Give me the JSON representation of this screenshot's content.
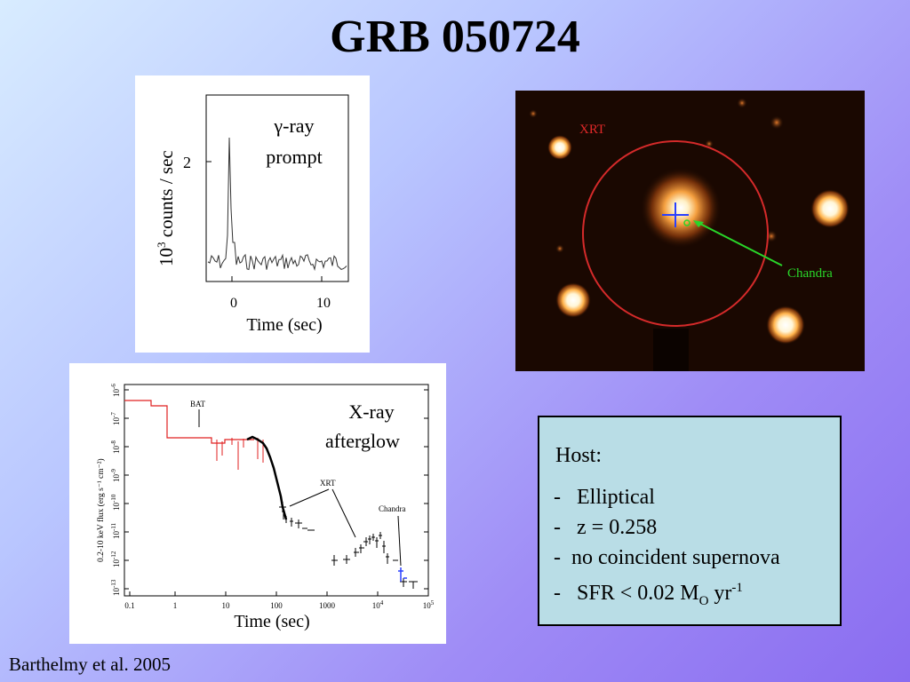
{
  "slide": {
    "title": "GRB 050724",
    "citation": "Barthelmy et al. 2005"
  },
  "gamma_panel": {
    "label_line1": "γ-ray",
    "label_line2": "prompt",
    "ylabel_base": "10",
    "ylabel_sup": "3",
    "ylabel_rest": " counts / sec",
    "ytick": "2",
    "xtick_0": "0",
    "xtick_10": "10",
    "xlabel": "Time (sec)"
  },
  "xray_panel": {
    "label_line1": "X-ray",
    "label_line2": "afterglow",
    "ylabel": "0.2-10 keV flux (erg s⁻¹ cm⁻²)",
    "xlabel": "Time (sec)",
    "ann_bat": "BAT",
    "ann_xrt": "XRT",
    "ann_chandra": "Chandra",
    "xticks": [
      "0.1",
      "1",
      "10",
      "100",
      "1000",
      "10",
      "10"
    ],
    "xtick_sups": [
      "4",
      "5"
    ],
    "yticks": [
      "10",
      "10",
      "10",
      "10",
      "10",
      "10",
      "10",
      "10"
    ],
    "ytick_sups": [
      "-13",
      "-12",
      "-11",
      "-10",
      "-9",
      "-8",
      "-7",
      "-6"
    ]
  },
  "sky_image": {
    "xrt_label": "XRT",
    "chandra_label": "Chandra",
    "colors": {
      "xrt_circle": "#d42a2a",
      "chandra_line": "#29d629",
      "crosshair": "#2a40ff"
    }
  },
  "host_box": {
    "heading": "Host:",
    "items": [
      {
        "dash": "-",
        "text": "Elliptical"
      },
      {
        "dash": "-",
        "text": "z = 0.258"
      },
      {
        "dash": "-",
        "text": "no coincident supernova"
      }
    ],
    "sfr_dash": "-",
    "sfr_prefix": "SFR < 0.02 M",
    "sfr_sub": "O",
    "sfr_mid": " yr",
    "sfr_sup": "-1"
  }
}
